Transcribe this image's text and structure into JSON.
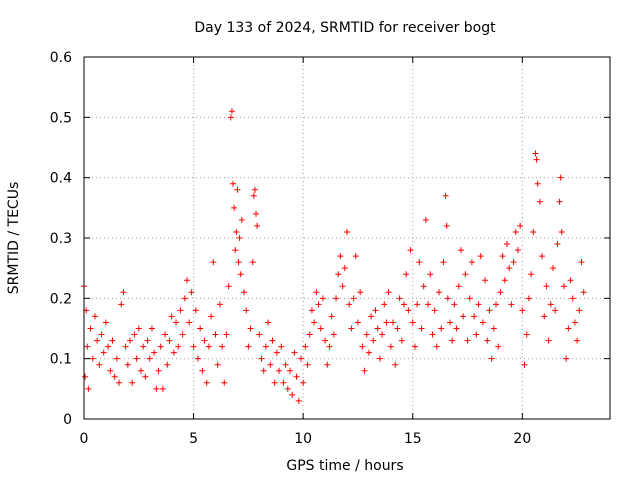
{
  "chart_data": {
    "type": "scatter",
    "title": "Day 133 of 2024, SRMTID for receiver bogt",
    "xlabel": "GPS time / hours",
    "ylabel": "SRMTID / TECUs",
    "xlim": [
      0,
      24
    ],
    "ylim": [
      0,
      0.6
    ],
    "x_ticks": [
      0,
      5,
      10,
      15,
      20
    ],
    "x_tick_labels": [
      "0",
      "5",
      "10",
      "15",
      "20"
    ],
    "y_ticks": [
      0,
      0.1,
      0.2,
      0.3,
      0.4,
      0.5,
      0.6
    ],
    "y_tick_labels": [
      "0",
      "0.1",
      "0.2",
      "0.3",
      "0.4",
      "0.5",
      "0.6"
    ],
    "grid": true,
    "marker": "plus",
    "series": [
      {
        "name": "SRMTID",
        "color": "#ff0000",
        "points": [
          [
            0.0,
            0.22
          ],
          [
            0.05,
            0.07
          ],
          [
            0.1,
            0.18
          ],
          [
            0.15,
            0.12
          ],
          [
            0.2,
            0.05
          ],
          [
            0.3,
            0.15
          ],
          [
            0.4,
            0.1
          ],
          [
            0.5,
            0.17
          ],
          [
            0.6,
            0.13
          ],
          [
            0.7,
            0.09
          ],
          [
            0.8,
            0.14
          ],
          [
            0.9,
            0.11
          ],
          [
            1.0,
            0.16
          ],
          [
            1.1,
            0.12
          ],
          [
            1.2,
            0.08
          ],
          [
            1.3,
            0.13
          ],
          [
            1.4,
            0.07
          ],
          [
            1.5,
            0.1
          ],
          [
            1.6,
            0.06
          ],
          [
            1.7,
            0.19
          ],
          [
            1.8,
            0.21
          ],
          [
            1.9,
            0.12
          ],
          [
            2.0,
            0.09
          ],
          [
            2.1,
            0.13
          ],
          [
            2.2,
            0.06
          ],
          [
            2.3,
            0.14
          ],
          [
            2.4,
            0.1
          ],
          [
            2.5,
            0.15
          ],
          [
            2.6,
            0.08
          ],
          [
            2.7,
            0.12
          ],
          [
            2.8,
            0.07
          ],
          [
            2.9,
            0.13
          ],
          [
            3.0,
            0.1
          ],
          [
            3.1,
            0.15
          ],
          [
            3.2,
            0.11
          ],
          [
            3.3,
            0.05
          ],
          [
            3.4,
            0.08
          ],
          [
            3.5,
            0.12
          ],
          [
            3.6,
            0.05
          ],
          [
            3.7,
            0.14
          ],
          [
            3.8,
            0.09
          ],
          [
            3.9,
            0.13
          ],
          [
            4.0,
            0.17
          ],
          [
            4.1,
            0.11
          ],
          [
            4.2,
            0.16
          ],
          [
            4.3,
            0.12
          ],
          [
            4.4,
            0.18
          ],
          [
            4.5,
            0.14
          ],
          [
            4.6,
            0.2
          ],
          [
            4.7,
            0.23
          ],
          [
            4.8,
            0.16
          ],
          [
            4.9,
            0.21
          ],
          [
            5.0,
            0.12
          ],
          [
            5.1,
            0.18
          ],
          [
            5.2,
            0.1
          ],
          [
            5.3,
            0.15
          ],
          [
            5.4,
            0.08
          ],
          [
            5.5,
            0.13
          ],
          [
            5.6,
            0.06
          ],
          [
            5.7,
            0.12
          ],
          [
            5.8,
            0.17
          ],
          [
            5.9,
            0.26
          ],
          [
            6.0,
            0.14
          ],
          [
            6.1,
            0.09
          ],
          [
            6.2,
            0.19
          ],
          [
            6.3,
            0.12
          ],
          [
            6.4,
            0.06
          ],
          [
            6.5,
            0.14
          ],
          [
            6.6,
            0.22
          ],
          [
            6.7,
            0.5
          ],
          [
            6.75,
            0.51
          ],
          [
            6.8,
            0.39
          ],
          [
            6.85,
            0.35
          ],
          [
            6.9,
            0.28
          ],
          [
            6.95,
            0.31
          ],
          [
            7.0,
            0.38
          ],
          [
            7.05,
            0.26
          ],
          [
            7.1,
            0.3
          ],
          [
            7.15,
            0.24
          ],
          [
            7.2,
            0.33
          ],
          [
            7.3,
            0.21
          ],
          [
            7.4,
            0.18
          ],
          [
            7.5,
            0.12
          ],
          [
            7.6,
            0.15
          ],
          [
            7.7,
            0.26
          ],
          [
            7.75,
            0.37
          ],
          [
            7.8,
            0.38
          ],
          [
            7.85,
            0.34
          ],
          [
            7.9,
            0.32
          ],
          [
            8.0,
            0.14
          ],
          [
            8.1,
            0.1
          ],
          [
            8.2,
            0.08
          ],
          [
            8.3,
            0.12
          ],
          [
            8.4,
            0.16
          ],
          [
            8.5,
            0.09
          ],
          [
            8.6,
            0.13
          ],
          [
            8.7,
            0.06
          ],
          [
            8.8,
            0.11
          ],
          [
            8.9,
            0.08
          ],
          [
            9.0,
            0.12
          ],
          [
            9.1,
            0.06
          ],
          [
            9.2,
            0.09
          ],
          [
            9.3,
            0.05
          ],
          [
            9.4,
            0.08
          ],
          [
            9.5,
            0.04
          ],
          [
            9.6,
            0.11
          ],
          [
            9.7,
            0.07
          ],
          [
            9.8,
            0.03
          ],
          [
            9.9,
            0.1
          ],
          [
            10.0,
            0.06
          ],
          [
            10.1,
            0.12
          ],
          [
            10.2,
            0.09
          ],
          [
            10.3,
            0.14
          ],
          [
            10.4,
            0.18
          ],
          [
            10.5,
            0.16
          ],
          [
            10.6,
            0.21
          ],
          [
            10.7,
            0.19
          ],
          [
            10.8,
            0.15
          ],
          [
            10.9,
            0.2
          ],
          [
            11.0,
            0.13
          ],
          [
            11.1,
            0.09
          ],
          [
            11.2,
            0.12
          ],
          [
            11.3,
            0.17
          ],
          [
            11.4,
            0.14
          ],
          [
            11.5,
            0.2
          ],
          [
            11.6,
            0.24
          ],
          [
            11.7,
            0.27
          ],
          [
            11.8,
            0.22
          ],
          [
            11.9,
            0.25
          ],
          [
            12.0,
            0.31
          ],
          [
            12.1,
            0.19
          ],
          [
            12.2,
            0.15
          ],
          [
            12.3,
            0.2
          ],
          [
            12.4,
            0.27
          ],
          [
            12.5,
            0.16
          ],
          [
            12.6,
            0.21
          ],
          [
            12.7,
            0.12
          ],
          [
            12.8,
            0.08
          ],
          [
            12.9,
            0.14
          ],
          [
            13.0,
            0.11
          ],
          [
            13.1,
            0.17
          ],
          [
            13.2,
            0.13
          ],
          [
            13.3,
            0.18
          ],
          [
            13.4,
            0.15
          ],
          [
            13.5,
            0.1
          ],
          [
            13.6,
            0.14
          ],
          [
            13.7,
            0.19
          ],
          [
            13.8,
            0.16
          ],
          [
            13.9,
            0.21
          ],
          [
            14.0,
            0.12
          ],
          [
            14.1,
            0.16
          ],
          [
            14.2,
            0.09
          ],
          [
            14.3,
            0.15
          ],
          [
            14.4,
            0.2
          ],
          [
            14.5,
            0.13
          ],
          [
            14.6,
            0.19
          ],
          [
            14.7,
            0.24
          ],
          [
            14.8,
            0.18
          ],
          [
            14.9,
            0.28
          ],
          [
            15.0,
            0.16
          ],
          [
            15.1,
            0.12
          ],
          [
            15.2,
            0.19
          ],
          [
            15.3,
            0.26
          ],
          [
            15.4,
            0.15
          ],
          [
            15.5,
            0.22
          ],
          [
            15.6,
            0.33
          ],
          [
            15.7,
            0.19
          ],
          [
            15.8,
            0.24
          ],
          [
            15.9,
            0.14
          ],
          [
            16.0,
            0.18
          ],
          [
            16.1,
            0.12
          ],
          [
            16.2,
            0.21
          ],
          [
            16.3,
            0.15
          ],
          [
            16.4,
            0.26
          ],
          [
            16.5,
            0.37
          ],
          [
            16.55,
            0.32
          ],
          [
            16.6,
            0.2
          ],
          [
            16.7,
            0.16
          ],
          [
            16.8,
            0.13
          ],
          [
            16.9,
            0.19
          ],
          [
            17.0,
            0.15
          ],
          [
            17.1,
            0.22
          ],
          [
            17.2,
            0.28
          ],
          [
            17.3,
            0.17
          ],
          [
            17.4,
            0.24
          ],
          [
            17.5,
            0.13
          ],
          [
            17.6,
            0.2
          ],
          [
            17.7,
            0.26
          ],
          [
            17.8,
            0.17
          ],
          [
            17.9,
            0.14
          ],
          [
            18.0,
            0.19
          ],
          [
            18.1,
            0.27
          ],
          [
            18.2,
            0.16
          ],
          [
            18.3,
            0.23
          ],
          [
            18.4,
            0.13
          ],
          [
            18.5,
            0.18
          ],
          [
            18.6,
            0.1
          ],
          [
            18.7,
            0.15
          ],
          [
            18.8,
            0.19
          ],
          [
            18.9,
            0.12
          ],
          [
            19.0,
            0.21
          ],
          [
            19.1,
            0.27
          ],
          [
            19.2,
            0.23
          ],
          [
            19.3,
            0.29
          ],
          [
            19.4,
            0.25
          ],
          [
            19.5,
            0.19
          ],
          [
            19.6,
            0.26
          ],
          [
            19.7,
            0.31
          ],
          [
            19.8,
            0.28
          ],
          [
            19.9,
            0.32
          ],
          [
            20.0,
            0.18
          ],
          [
            20.1,
            0.09
          ],
          [
            20.2,
            0.14
          ],
          [
            20.3,
            0.2
          ],
          [
            20.4,
            0.24
          ],
          [
            20.5,
            0.31
          ],
          [
            20.6,
            0.44
          ],
          [
            20.65,
            0.43
          ],
          [
            20.7,
            0.39
          ],
          [
            20.8,
            0.36
          ],
          [
            20.9,
            0.27
          ],
          [
            21.0,
            0.17
          ],
          [
            21.1,
            0.22
          ],
          [
            21.2,
            0.13
          ],
          [
            21.3,
            0.19
          ],
          [
            21.4,
            0.25
          ],
          [
            21.5,
            0.18
          ],
          [
            21.6,
            0.29
          ],
          [
            21.7,
            0.36
          ],
          [
            21.75,
            0.4
          ],
          [
            21.8,
            0.31
          ],
          [
            21.9,
            0.22
          ],
          [
            22.0,
            0.1
          ],
          [
            22.1,
            0.15
          ],
          [
            22.2,
            0.23
          ],
          [
            22.3,
            0.2
          ],
          [
            22.4,
            0.16
          ],
          [
            22.5,
            0.13
          ],
          [
            22.6,
            0.18
          ],
          [
            22.7,
            0.26
          ],
          [
            22.8,
            0.21
          ]
        ]
      }
    ]
  }
}
